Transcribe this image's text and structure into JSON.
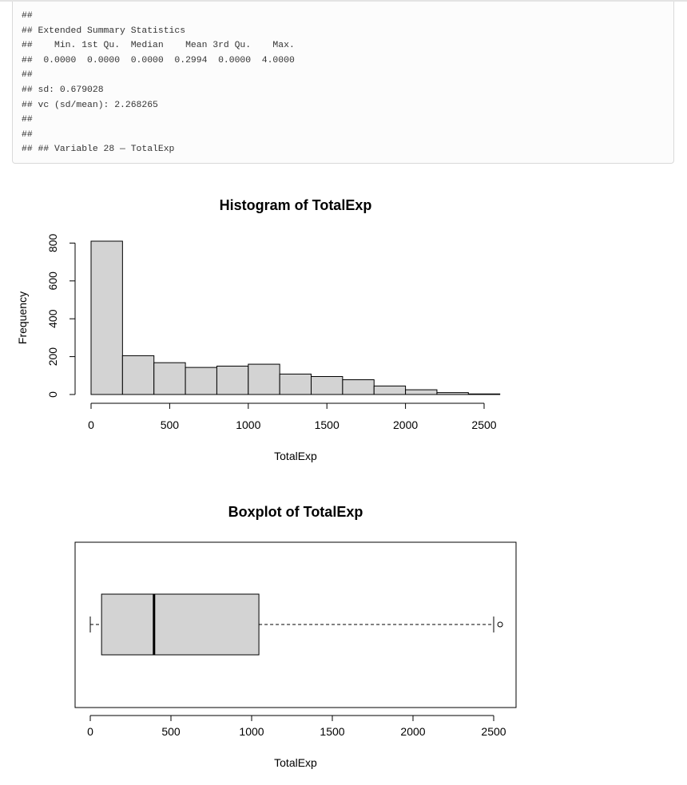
{
  "code_output": {
    "lines": [
      "##",
      "## Extended Summary Statistics",
      "##    Min. 1st Qu.  Median    Mean 3rd Qu.    Max.",
      "##  0.0000  0.0000  0.0000  0.2994  0.0000  4.0000",
      "##",
      "## sd: 0.679028",
      "## vc (sd/mean): 2.268265",
      "##",
      "##",
      "## ## Variable 28 — TotalExp"
    ]
  },
  "chart_data": [
    {
      "type": "histogram",
      "title": "Histogram of TotalExp",
      "xlabel": "TotalExp",
      "ylabel": "Frequency",
      "bin_edges": [
        0,
        200,
        400,
        600,
        800,
        1000,
        1200,
        1400,
        1600,
        1800,
        2000,
        2200,
        2400,
        2600
      ],
      "values": [
        810,
        205,
        168,
        143,
        150,
        160,
        108,
        95,
        78,
        45,
        25,
        10,
        3
      ],
      "x_ticks": [
        0,
        500,
        1000,
        1500,
        2000,
        2500
      ],
      "y_ticks": [
        0,
        200,
        400,
        600,
        800
      ],
      "xlim": [
        0,
        2600
      ],
      "ylim": [
        0,
        810
      ],
      "bar_fill": "#d3d3d3",
      "bar_stroke": "#000000"
    },
    {
      "type": "boxplot",
      "title": "Boxplot of TotalExp",
      "xlabel": "TotalExp",
      "orientation": "horizontal",
      "whisker_low": 0,
      "q1": 70,
      "median": 395,
      "q3": 1045,
      "whisker_high": 2500,
      "outliers": [
        2540
      ],
      "x_ticks": [
        0,
        500,
        1000,
        1500,
        2000,
        2500
      ],
      "xlim": [
        -100,
        2600
      ],
      "box_fill": "#d3d3d3"
    }
  ]
}
